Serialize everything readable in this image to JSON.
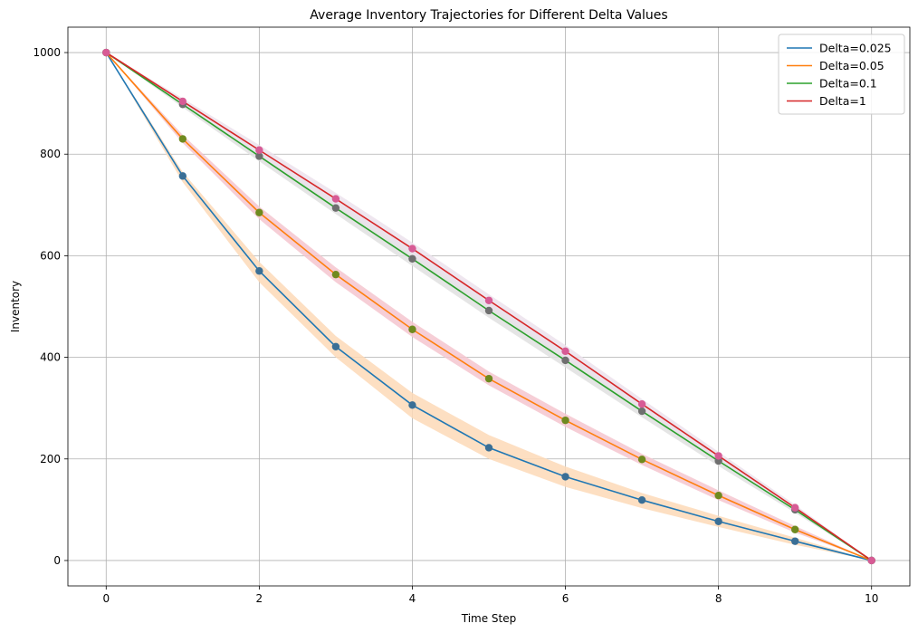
{
  "chart_data": {
    "type": "line",
    "title": "Average Inventory Trajectories for Different Delta Values",
    "xlabel": "Time Step",
    "ylabel": "Inventory",
    "xlim": [
      -0.5,
      10.5
    ],
    "ylim": [
      -50,
      1050
    ],
    "xticks": [
      0,
      2,
      4,
      6,
      8,
      10
    ],
    "yticks": [
      0,
      200,
      400,
      600,
      800,
      1000
    ],
    "grid": true,
    "legend_position": "top-right",
    "x": [
      0,
      1,
      2,
      3,
      4,
      5,
      6,
      7,
      8,
      9,
      10
    ],
    "series": [
      {
        "name": "Delta=0.025",
        "color": "#1f77b4",
        "marker_color": "#3a6f96",
        "band_color": "#fdd9b7",
        "values": [
          1000,
          757,
          570,
          421,
          306,
          222,
          165,
          119,
          77,
          38,
          0
        ],
        "band_low": [
          1000,
          745,
          548,
          400,
          280,
          200,
          145,
          103,
          66,
          31,
          0
        ],
        "band_high": [
          1000,
          765,
          588,
          442,
          330,
          247,
          185,
          133,
          88,
          45,
          0
        ]
      },
      {
        "name": "Delta=0.05",
        "color": "#ff7f0e",
        "marker_color": "#6f8a1f",
        "band_color": "#f5c6cf",
        "values": [
          1000,
          830,
          685,
          563,
          455,
          358,
          276,
          199,
          128,
          61,
          0
        ],
        "band_low": [
          1000,
          822,
          672,
          548,
          440,
          345,
          263,
          188,
          119,
          55,
          0
        ],
        "band_high": [
          1000,
          838,
          697,
          577,
          470,
          372,
          289,
          210,
          138,
          68,
          0
        ]
      },
      {
        "name": "Delta=0.1",
        "color": "#2ca02c",
        "marker_color": "#6f6f6f",
        "band_color": "#e1e1e1",
        "values": [
          1000,
          898,
          796,
          694,
          594,
          492,
          394,
          294,
          196,
          100,
          0
        ],
        "band_low": [
          1000,
          892,
          786,
          682,
          580,
          478,
          380,
          282,
          186,
          94,
          0
        ],
        "band_high": [
          1000,
          906,
          808,
          710,
          612,
          512,
          412,
          310,
          208,
          106,
          0
        ]
      },
      {
        "name": "Delta=1",
        "color": "#d62728",
        "marker_color": "#d75b95",
        "band_color": "#ece2ec",
        "values": [
          1000,
          904,
          808,
          712,
          614,
          512,
          412,
          308,
          206,
          104,
          0
        ],
        "band_low": [
          1000,
          898,
          798,
          700,
          602,
          500,
          400,
          298,
          198,
          98,
          0
        ],
        "band_high": [
          1000,
          910,
          818,
          724,
          626,
          524,
          424,
          318,
          214,
          110,
          0
        ]
      }
    ]
  }
}
